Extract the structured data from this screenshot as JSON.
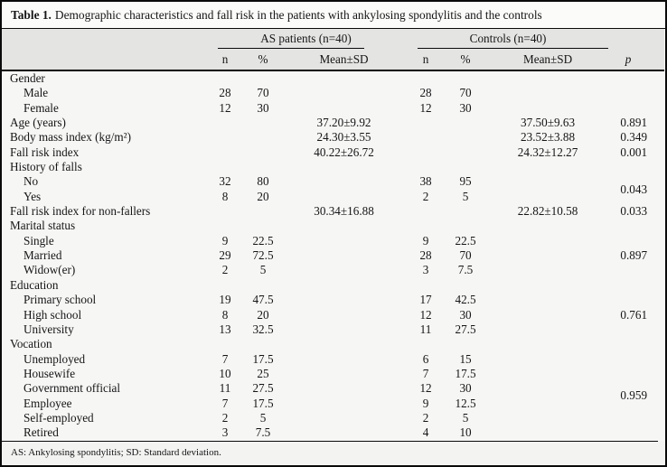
{
  "table": {
    "title_label": "Table 1.",
    "title_text": "Demographic characteristics and fall risk in the patients with ankylosing spondylitis and the controls",
    "groups": {
      "as_label": "AS patients (n=40)",
      "controls_label": "Controls (n=40)"
    },
    "sub_headers": [
      "n",
      "%",
      "Mean±SD",
      "n",
      "%",
      "Mean±SD"
    ],
    "p_header": "p",
    "rows": [
      {
        "type": "section",
        "label": "Gender",
        "as_n": "",
        "as_pct": "",
        "as_mean": "",
        "c_n": "",
        "c_pct": "",
        "c_mean": "",
        "p": "",
        "p_span": 1
      },
      {
        "type": "item",
        "label": "Male",
        "as_n": "28",
        "as_pct": "70",
        "as_mean": "",
        "c_n": "28",
        "c_pct": "70",
        "c_mean": "",
        "p": "",
        "p_span": 1
      },
      {
        "type": "item",
        "label": "Female",
        "as_n": "12",
        "as_pct": "30",
        "as_mean": "",
        "c_n": "12",
        "c_pct": "30",
        "c_mean": "",
        "p": "",
        "p_span": 1
      },
      {
        "type": "section",
        "label": "Age (years)",
        "as_n": "",
        "as_pct": "",
        "as_mean": "37.20±9.92",
        "c_n": "",
        "c_pct": "",
        "c_mean": "37.50±9.63",
        "p": "0.891",
        "p_span": 1
      },
      {
        "type": "section",
        "label": "Body mass index (kg/m²)",
        "as_n": "",
        "as_pct": "",
        "as_mean": "24.30±3.55",
        "c_n": "",
        "c_pct": "",
        "c_mean": "23.52±3.88",
        "p": "0.349",
        "p_span": 1
      },
      {
        "type": "section",
        "label": "Fall risk index",
        "as_n": "",
        "as_pct": "",
        "as_mean": "40.22±26.72",
        "c_n": "",
        "c_pct": "",
        "c_mean": "24.32±12.27",
        "p": "0.001",
        "p_span": 1
      },
      {
        "type": "section",
        "label": "History of falls",
        "as_n": "",
        "as_pct": "",
        "as_mean": "",
        "c_n": "",
        "c_pct": "",
        "c_mean": "",
        "p": "",
        "p_span": 1
      },
      {
        "type": "item",
        "label": "No",
        "as_n": "32",
        "as_pct": "80",
        "as_mean": "",
        "c_n": "38",
        "c_pct": "95",
        "c_mean": "",
        "p": "0.043",
        "p_span": 2
      },
      {
        "type": "item",
        "label": "Yes",
        "as_n": "8",
        "as_pct": "20",
        "as_mean": "",
        "c_n": "2",
        "c_pct": "5",
        "c_mean": "",
        "p": null,
        "p_span": null
      },
      {
        "type": "section",
        "label": "Fall risk index for non-fallers",
        "as_n": "",
        "as_pct": "",
        "as_mean": "30.34±16.88",
        "c_n": "",
        "c_pct": "",
        "c_mean": "22.82±10.58",
        "p": "0.033",
        "p_span": 1
      },
      {
        "type": "section",
        "label": "Marital status",
        "as_n": "",
        "as_pct": "",
        "as_mean": "",
        "c_n": "",
        "c_pct": "",
        "c_mean": "",
        "p": "",
        "p_span": 1
      },
      {
        "type": "item",
        "label": "Single",
        "as_n": "9",
        "as_pct": "22.5",
        "as_mean": "",
        "c_n": "9",
        "c_pct": "22.5",
        "c_mean": "",
        "p": "0.897",
        "p_span": 3
      },
      {
        "type": "item",
        "label": "Married",
        "as_n": "29",
        "as_pct": "72.5",
        "as_mean": "",
        "c_n": "28",
        "c_pct": "70",
        "c_mean": "",
        "p": null,
        "p_span": null
      },
      {
        "type": "item",
        "label": "Widow(er)",
        "as_n": "2",
        "as_pct": "5",
        "as_mean": "",
        "c_n": "3",
        "c_pct": "7.5",
        "c_mean": "",
        "p": null,
        "p_span": null
      },
      {
        "type": "section",
        "label": "Education",
        "as_n": "",
        "as_pct": "",
        "as_mean": "",
        "c_n": "",
        "c_pct": "",
        "c_mean": "",
        "p": "",
        "p_span": 1
      },
      {
        "type": "item",
        "label": "Primary school",
        "as_n": "19",
        "as_pct": "47.5",
        "as_mean": "",
        "c_n": "17",
        "c_pct": "42.5",
        "c_mean": "",
        "p": "0.761",
        "p_span": 3
      },
      {
        "type": "item",
        "label": "High school",
        "as_n": "8",
        "as_pct": "20",
        "as_mean": "",
        "c_n": "12",
        "c_pct": "30",
        "c_mean": "",
        "p": null,
        "p_span": null
      },
      {
        "type": "item",
        "label": "University",
        "as_n": "13",
        "as_pct": "32.5",
        "as_mean": "",
        "c_n": "11",
        "c_pct": "27.5",
        "c_mean": "",
        "p": null,
        "p_span": null
      },
      {
        "type": "section",
        "label": "Vocation",
        "as_n": "",
        "as_pct": "",
        "as_mean": "",
        "c_n": "",
        "c_pct": "",
        "c_mean": "",
        "p": "",
        "p_span": 1
      },
      {
        "type": "item",
        "label": "Unemployed",
        "as_n": "7",
        "as_pct": "17.5",
        "as_mean": "",
        "c_n": "6",
        "c_pct": "15",
        "c_mean": "",
        "p": "0.959",
        "p_span": 6
      },
      {
        "type": "item",
        "label": "Housewife",
        "as_n": "10",
        "as_pct": "25",
        "as_mean": "",
        "c_n": "7",
        "c_pct": "17.5",
        "c_mean": "",
        "p": null,
        "p_span": null
      },
      {
        "type": "item",
        "label": "Government official",
        "as_n": "11",
        "as_pct": "27.5",
        "as_mean": "",
        "c_n": "12",
        "c_pct": "30",
        "c_mean": "",
        "p": null,
        "p_span": null
      },
      {
        "type": "item",
        "label": "Employee",
        "as_n": "7",
        "as_pct": "17.5",
        "as_mean": "",
        "c_n": "9",
        "c_pct": "12.5",
        "c_mean": "",
        "p": null,
        "p_span": null
      },
      {
        "type": "item",
        "label": "Self-employed",
        "as_n": "2",
        "as_pct": "5",
        "as_mean": "",
        "c_n": "2",
        "c_pct": "5",
        "c_mean": "",
        "p": null,
        "p_span": null
      },
      {
        "type": "item",
        "label": "Retired",
        "as_n": "3",
        "as_pct": "7.5",
        "as_mean": "",
        "c_n": "4",
        "c_pct": "10",
        "c_mean": "",
        "p": null,
        "p_span": null
      }
    ],
    "footnote": "AS: Ankylosing spondylitis; SD: Standard deviation."
  },
  "colors": {
    "frame_border": "#0a0a0a",
    "header_band": "#e4e4e3",
    "title_band": "#fbfbfa",
    "body_background": "#f6f6f5",
    "footnote_band": "#f3f3f2",
    "text": "#151515"
  }
}
